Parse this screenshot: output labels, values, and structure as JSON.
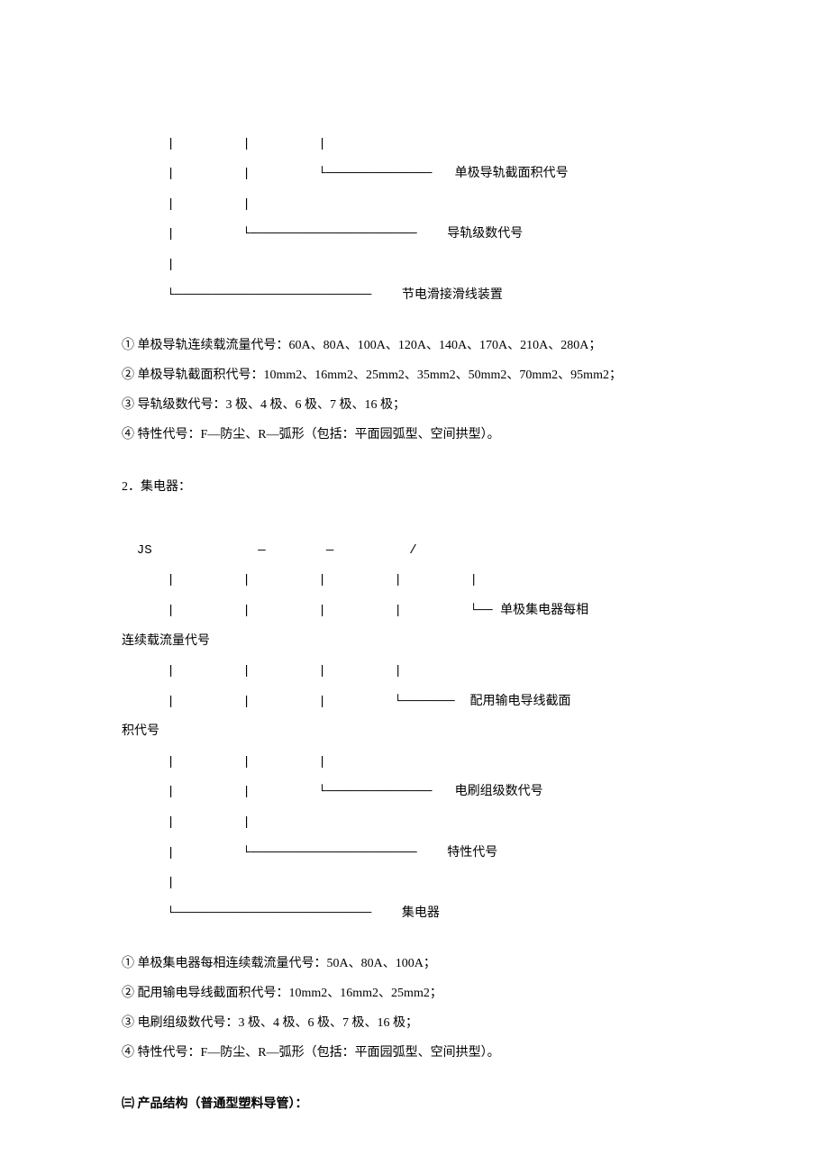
{
  "doc": {
    "font_family": "SimSun",
    "font_size_pt": 10.5,
    "text_color": "#000000",
    "background_color": "#ffffff"
  },
  "diagram1": {
    "lines": [
      "      |         |         |",
      "      |         |         └──────────────   单极导轨截面积代号",
      "      |         |",
      "      |         └──────────────────────    导轨级数代号",
      "      |",
      "      └──────────────────────────    节电滑接滑线装置"
    ]
  },
  "list1": {
    "item1": "① 单极导轨连续载流量代号：60A、80A、100A、120A、140A、170A、210A、280A；",
    "item2": "② 单极导轨截面积代号：10mm2、16mm2、25mm2、35mm2、50mm2、70mm2、95mm2；",
    "item3": "③ 导轨级数代号：3 极、4 极、6 极、7 极、16 极；",
    "item4": "④ 特性代号：F—防尘、R—弧形（包括：平面园弧型、空间拱型）。"
  },
  "section2": {
    "title": "2．集电器："
  },
  "diagram2": {
    "prefix_line": "  JS              —        —          /",
    "lines": [
      "      |         |         |         |         |",
      "      |         |         |         |         └── 单极集电器每相",
      "连续载流量代号",
      "      |         |         |         |",
      "      |         |         |         └───────  配用输电导线截面",
      "积代号",
      "      |         |         |",
      "      |         |         └──────────────   电刷组级数代号",
      "      |         |",
      "      |         └──────────────────────    特性代号",
      "      |",
      "      └──────────────────────────    集电器"
    ]
  },
  "list2": {
    "item1": "① 单极集电器每相连续载流量代号：50A、80A、100A；",
    "item2": "② 配用输电导线截面积代号：10mm2、16mm2、25mm2；",
    "item3": "③ 电刷组级数代号：3 极、4 极、6 极、7 极、16 极；",
    "item4": "④ 特性代号：F—防尘、R—弧形（包括：平面园弧型、空间拱型）。"
  },
  "section3": {
    "title": "㈢ 产品结构（普通型塑料导管）："
  }
}
